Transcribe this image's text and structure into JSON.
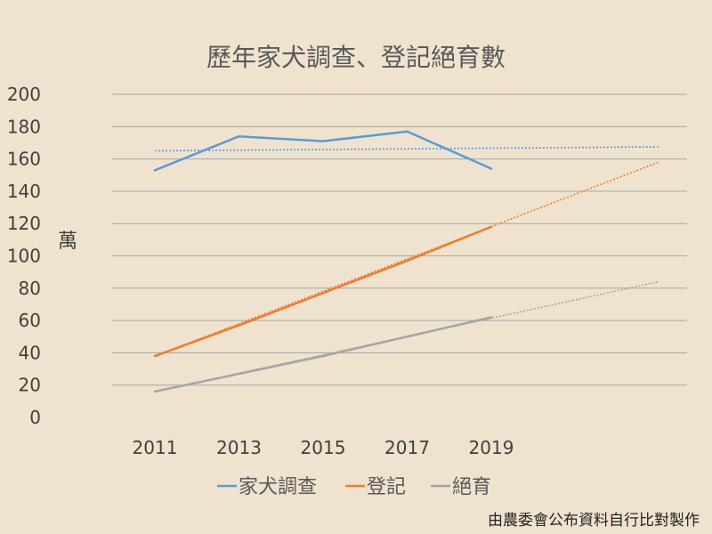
{
  "chart_data": {
    "type": "line",
    "title": "歷年家犬調查、登記絕育數",
    "ylabel": "萬",
    "xlabel": "",
    "categories": [
      "2011",
      "2013",
      "2015",
      "2017",
      "2019"
    ],
    "ylim": [
      0,
      200
    ],
    "yticks": [
      "0",
      "20",
      "40",
      "60",
      "80",
      "100",
      "120",
      "140",
      "160",
      "180",
      "200"
    ],
    "grid": true,
    "legend_position": "bottom",
    "series": [
      {
        "name": "家犬調查",
        "values": [
          153,
          174,
          171,
          177,
          154
        ],
        "color": "#5b9bd5",
        "trendline": [
          165,
          167.5
        ]
      },
      {
        "name": "登記",
        "values": [
          38,
          57,
          77,
          97,
          118
        ],
        "color": "#ed7d31",
        "trendline": [
          38,
          158
        ]
      },
      {
        "name": "絕育",
        "values": [
          16,
          27,
          38,
          50,
          62
        ],
        "color": "#a5a5a5",
        "trendline": [
          16,
          84
        ]
      }
    ],
    "source_note": "由農委會公布資料自行比對製作"
  }
}
